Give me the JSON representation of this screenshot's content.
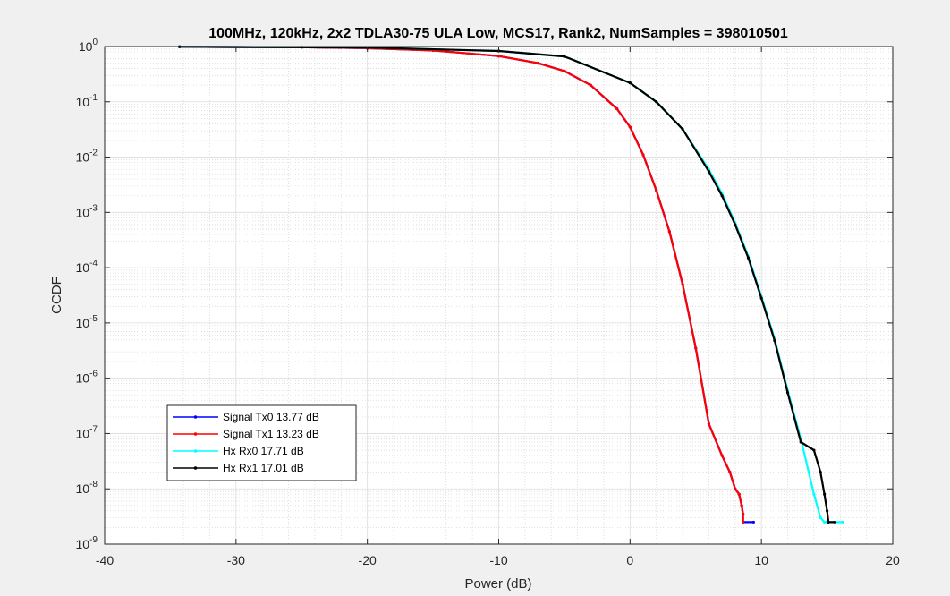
{
  "chart_data": {
    "type": "line",
    "title": "100MHz, 120kHz, 2x2 TDLA30-75 ULA Low, MCS17, Rank2, NumSamples = 398010501",
    "xlabel": "Power (dB)",
    "ylabel": "CCDF",
    "xlim": [
      -40,
      20
    ],
    "ylim": [
      1e-09,
      1
    ],
    "yscale": "log",
    "grid": true,
    "minor_grid": true,
    "legend_position": "bottom-left",
    "x_ticks": [
      "-40",
      "-30",
      "-20",
      "-10",
      "0",
      "10",
      "20"
    ],
    "y_ticks": [
      {
        "base": "10",
        "exp": "-9"
      },
      {
        "base": "10",
        "exp": "-8"
      },
      {
        "base": "10",
        "exp": "-7"
      },
      {
        "base": "10",
        "exp": "-6"
      },
      {
        "base": "10",
        "exp": "-5"
      },
      {
        "base": "10",
        "exp": "-4"
      },
      {
        "base": "10",
        "exp": "-3"
      },
      {
        "base": "10",
        "exp": "-2"
      },
      {
        "base": "10",
        "exp": "-1"
      },
      {
        "base": "10",
        "exp": "0"
      }
    ],
    "series": [
      {
        "name": "Signal Tx0 13.77 dB",
        "color": "#0000ff",
        "x": [
          -34.3,
          -25,
          -20,
          -15,
          -10,
          -7,
          -5,
          -3,
          -1,
          0,
          1,
          2,
          3,
          4,
          5,
          6,
          7,
          7.6,
          8.0,
          8.3,
          8.5,
          8.6,
          8.6,
          9.4
        ],
        "y": [
          0.99,
          0.97,
          0.93,
          0.85,
          0.67,
          0.5,
          0.36,
          0.2,
          0.075,
          0.035,
          0.011,
          0.0025,
          0.00045,
          5e-05,
          3.5e-06,
          1.5e-07,
          4e-08,
          2e-08,
          1e-08,
          8e-09,
          5e-09,
          3.5e-09,
          2.5e-09,
          2.5e-09
        ]
      },
      {
        "name": "Signal Tx1 13.23 dB",
        "color": "#ff0000",
        "x": [
          -34.3,
          -25,
          -20,
          -15,
          -10,
          -7,
          -5,
          -3,
          -1,
          0,
          1,
          2,
          3,
          4,
          5,
          6,
          7,
          7.6,
          8.0,
          8.3,
          8.5,
          8.6,
          8.6
        ],
        "y": [
          0.99,
          0.97,
          0.93,
          0.85,
          0.67,
          0.5,
          0.36,
          0.2,
          0.075,
          0.035,
          0.011,
          0.0025,
          0.00045,
          5e-05,
          3.5e-06,
          1.5e-07,
          4e-08,
          2e-08,
          1e-08,
          8e-09,
          5e-09,
          3.5e-09,
          2.5e-09
        ]
      },
      {
        "name": "Hx Rx0 17.71 dB",
        "color": "#00ffff",
        "x": [
          -34.3,
          -20,
          -10,
          -5,
          0,
          2,
          4,
          6,
          7,
          8,
          9,
          10,
          11,
          12,
          13,
          14,
          14.5,
          14.8,
          15.0,
          15.1,
          16.2
        ],
        "y": [
          0.99,
          0.96,
          0.83,
          0.66,
          0.22,
          0.1,
          0.032,
          0.006,
          0.0022,
          0.00065,
          0.00016,
          3e-05,
          5.2e-06,
          6e-07,
          8e-08,
          8e-09,
          3e-09,
          2.5e-09,
          2.5e-09,
          2.5e-09,
          2.5e-09
        ]
      },
      {
        "name": "Hx Rx1 17.01 dB",
        "color": "#000000",
        "x": [
          -34.3,
          -20,
          -10,
          -5,
          0,
          2,
          4,
          6,
          7,
          8,
          9,
          10,
          11,
          12,
          13,
          14,
          14.5,
          14.8,
          15.0,
          15.1,
          15.6
        ],
        "y": [
          0.99,
          0.96,
          0.83,
          0.66,
          0.22,
          0.1,
          0.032,
          0.0055,
          0.002,
          0.0006,
          0.00015,
          2.8e-05,
          4.8e-06,
          5.5e-07,
          7e-08,
          5e-08,
          2e-08,
          8e-09,
          4e-09,
          2.5e-09,
          2.5e-09
        ]
      }
    ]
  }
}
